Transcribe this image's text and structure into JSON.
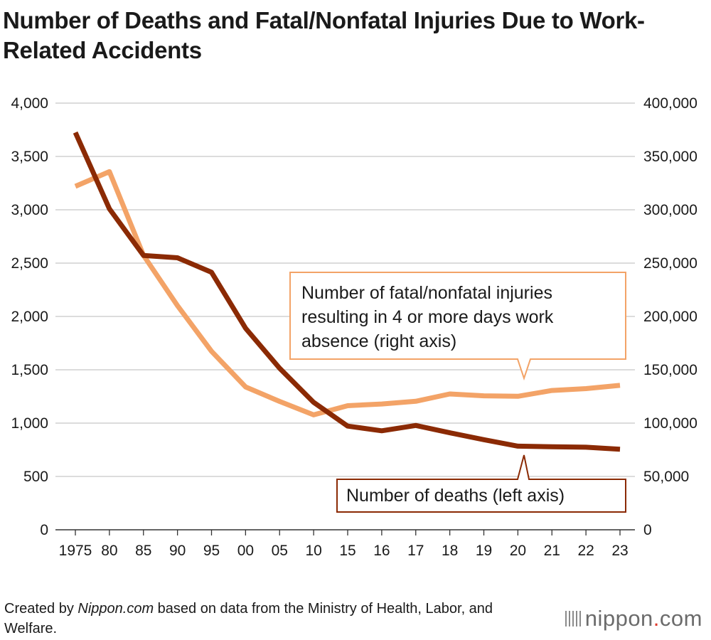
{
  "title": "Number of Deaths and Fatal/Nonfatal Injuries Due to Work-Related Accidents",
  "footer": {
    "prefix": "Created by ",
    "site": "Nippon.com",
    "suffix": " based on data from the Ministry of Health, Labor, and Welfare."
  },
  "logo": {
    "name": "nippon",
    "dot": ".",
    "tld": "com"
  },
  "colors": {
    "deaths": "#8b2a04",
    "injuries": "#f3a367",
    "grid": "#c8c8c8",
    "text": "#1a1a1a"
  },
  "chart_data": {
    "type": "line",
    "categories": [
      "1975",
      "80",
      "85",
      "90",
      "95",
      "00",
      "05",
      "10",
      "15",
      "16",
      "17",
      "18",
      "19",
      "20",
      "21",
      "22",
      "23"
    ],
    "series": [
      {
        "name": "Number of deaths (left axis)",
        "axis": "left",
        "values": [
          3725,
          3009,
          2572,
          2550,
          2414,
          1889,
          1514,
          1195,
          972,
          928,
          978,
          909,
          845,
          784,
          778,
          774,
          755
        ]
      },
      {
        "name": "Number of fatal/nonfatal injuries resulting in 4 or more days work absence (right axis)",
        "axis": "right",
        "values": [
          322000,
          335706,
          257240,
          210108,
          167316,
          133948,
          120354,
          107759,
          116311,
          117910,
          120460,
          127329,
          125611,
          125115,
          130586,
          132355,
          135371
        ]
      }
    ],
    "left_axis": {
      "min": 0,
      "max": 4000,
      "ticks": [
        "0",
        "500",
        "1,000",
        "1,500",
        "2,000",
        "2,500",
        "3,000",
        "3,500",
        "4,000"
      ]
    },
    "right_axis": {
      "min": 0,
      "max": 400000,
      "ticks": [
        "0",
        "50,000",
        "100,000",
        "150,000",
        "200,000",
        "250,000",
        "300,000",
        "350,000",
        "400,000"
      ]
    },
    "annotations": {
      "injuries": [
        "Number of fatal/nonfatal injuries",
        "resulting in 4 or more days work",
        "absence (right axis)"
      ],
      "deaths": "Number of deaths (left axis)"
    },
    "grid": true
  }
}
